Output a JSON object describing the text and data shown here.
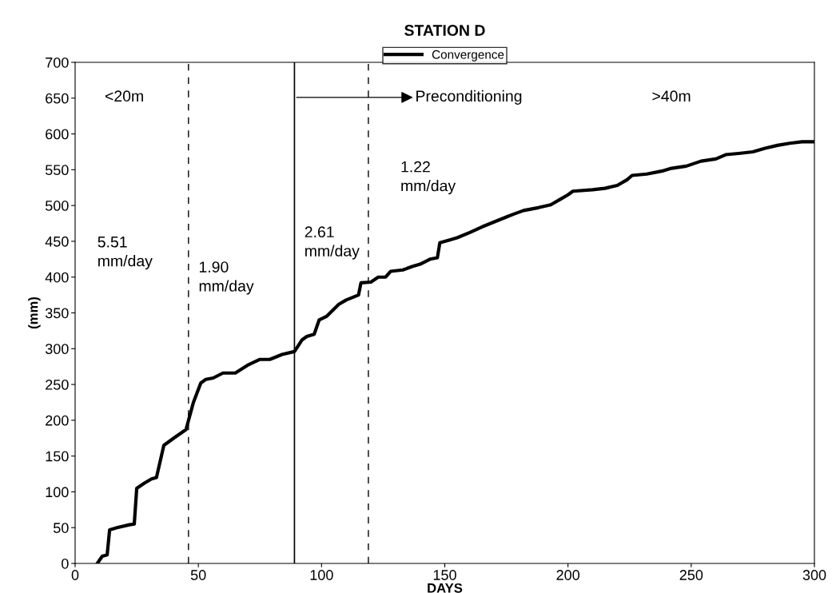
{
  "chart_data": {
    "type": "line",
    "title": "STATION D",
    "xlabel": "DAYS",
    "ylabel": "(mm)",
    "series": [
      {
        "name": "Convergence",
        "color": "#000000",
        "x": [
          9,
          10,
          11,
          13,
          14,
          17,
          22,
          24,
          25,
          28,
          31,
          33,
          36,
          40,
          45,
          48,
          51,
          53,
          56,
          60,
          65,
          70,
          75,
          79,
          84,
          89,
          92,
          94,
          97,
          99,
          102,
          107,
          110,
          115,
          116,
          120,
          123,
          126,
          128,
          133,
          137,
          140,
          144,
          147,
          148,
          152,
          155,
          160,
          165,
          170,
          175,
          178,
          182,
          188,
          193,
          197,
          200,
          202,
          210,
          215,
          220,
          224,
          226,
          232,
          238,
          242,
          248,
          254,
          260,
          264,
          270,
          275,
          280,
          285,
          290,
          295,
          300
        ],
        "values": [
          0,
          5,
          10,
          12,
          47,
          50,
          54,
          55,
          105,
          112,
          118,
          120,
          165,
          175,
          187,
          225,
          252,
          257,
          259,
          266,
          266,
          277,
          285,
          285,
          292,
          296,
          312,
          317,
          320,
          340,
          345,
          362,
          368,
          375,
          392,
          393,
          400,
          400,
          408,
          410,
          415,
          418,
          425,
          427,
          448,
          452,
          455,
          462,
          470,
          477,
          484,
          488,
          493,
          497,
          501,
          509,
          515,
          520,
          522,
          524,
          528,
          536,
          542,
          544,
          548,
          552,
          555,
          562,
          565,
          571,
          573,
          575,
          580,
          584,
          587,
          589,
          589
        ]
      }
    ],
    "xlim": [
      0,
      300
    ],
    "xticks": [
      0,
      50,
      100,
      150,
      200,
      250,
      300
    ],
    "ylim": [
      0,
      700
    ],
    "yticks": [
      0,
      50,
      100,
      150,
      200,
      250,
      300,
      350,
      400,
      450,
      500,
      550,
      600,
      650,
      700
    ],
    "ref_lines": [
      {
        "axis": "x",
        "value": 46,
        "line_style": "dashed",
        "color": "#000000"
      },
      {
        "axis": "x",
        "value": 89,
        "line_style": "solid",
        "color": "#000000"
      },
      {
        "axis": "x",
        "value": 119,
        "line_style": "dashed",
        "color": "#000000"
      }
    ],
    "annotations": [
      "<20m",
      "Preconditioning",
      ">40m",
      "5.51\nmm/day",
      "1.90\nmm/day",
      "2.61\nmm/day",
      "1.22\nmm/day"
    ],
    "legend": "top",
    "grid": false,
    "marker": "none",
    "line_style": "solid"
  }
}
